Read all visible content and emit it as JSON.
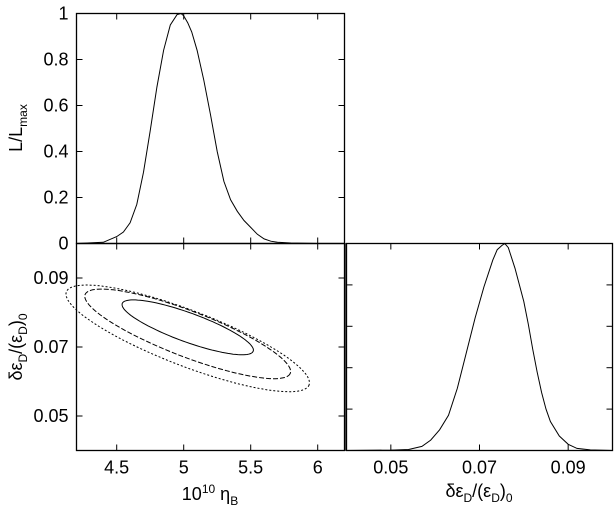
{
  "chart_data": [
    {
      "id": "eta_marginal",
      "type": "line",
      "ylabel": "L/L_max",
      "ylabel_parts": {
        "main": "L/L",
        "sub": "max"
      },
      "xlim": [
        4.2,
        6.2
      ],
      "ylim": [
        0,
        1
      ],
      "yticks": [
        0,
        0.2,
        0.4,
        0.6,
        0.8,
        1
      ],
      "ytick_labels": [
        "0",
        "0.2",
        "0.4",
        "0.6",
        "0.8",
        "1"
      ],
      "xticks": [
        4.5,
        5,
        5.5,
        6
      ],
      "series": [
        {
          "x": [
            4.2,
            4.4,
            4.5,
            4.55,
            4.6,
            4.65,
            4.7,
            4.75,
            4.8,
            4.85,
            4.9,
            4.95,
            4.98,
            5.0,
            5.03,
            5.06,
            5.1,
            5.15,
            5.2,
            5.25,
            5.3,
            5.35,
            5.4,
            5.45,
            5.5,
            5.55,
            5.6,
            5.65,
            5.7,
            5.8,
            6.0
          ],
          "y": [
            0,
            0.005,
            0.03,
            0.05,
            0.09,
            0.17,
            0.31,
            0.49,
            0.68,
            0.84,
            0.95,
            0.995,
            1.0,
            0.99,
            0.96,
            0.92,
            0.84,
            0.71,
            0.56,
            0.4,
            0.27,
            0.19,
            0.14,
            0.1,
            0.07,
            0.04,
            0.02,
            0.01,
            0.005,
            0.002,
            0
          ]
        }
      ]
    },
    {
      "id": "joint_contours",
      "type": "line",
      "xlabel": "10^10 η_B",
      "xlabel_parts": {
        "pre": "10",
        "sup": "10",
        "mid": " η",
        "sub": "B"
      },
      "ylabel": "δε_D/(ε_D)_0",
      "xlim": [
        4.2,
        6.2
      ],
      "ylim": [
        0.04,
        0.1
      ],
      "xticks": [
        4.5,
        5,
        5.5,
        6
      ],
      "xtick_labels": [
        "4.5",
        "5",
        "5.5",
        "6"
      ],
      "yticks": [
        0.05,
        0.07,
        0.09
      ],
      "ytick_labels": [
        "0.05",
        "0.07",
        "0.09"
      ],
      "contours": [
        {
          "level": "68%",
          "style": "solid",
          "center": [
            5.03,
            0.0757
          ],
          "radii": [
            0.52,
            0.01
          ],
          "angle_deg": 20
        },
        {
          "level": "95%",
          "style": "dashed",
          "center": [
            5.03,
            0.0738
          ],
          "radii": [
            0.82,
            0.0158
          ],
          "angle_deg": 21
        },
        {
          "level": "99%",
          "style": "dotted",
          "center": [
            5.03,
            0.0725
          ],
          "radii": [
            0.97,
            0.0192
          ],
          "angle_deg": 21
        }
      ]
    },
    {
      "id": "eps_marginal",
      "type": "line",
      "xlabel": "δε_D/(ε_D)_0",
      "xlim": [
        0.04,
        0.1
      ],
      "ylim": [
        0,
        1
      ],
      "xticks": [
        0.05,
        0.07,
        0.09
      ],
      "xtick_labels": [
        "0.05",
        "0.07",
        "0.09"
      ],
      "series": [
        {
          "x": [
            0.04,
            0.05,
            0.054,
            0.057,
            0.059,
            0.061,
            0.063,
            0.065,
            0.067,
            0.069,
            0.071,
            0.073,
            0.074,
            0.075,
            0.0757,
            0.0765,
            0.078,
            0.079,
            0.08,
            0.081,
            0.082,
            0.083,
            0.084,
            0.085,
            0.086,
            0.088,
            0.09,
            0.092,
            0.095,
            0.1
          ],
          "y": [
            0,
            0.002,
            0.005,
            0.02,
            0.05,
            0.1,
            0.17,
            0.3,
            0.47,
            0.64,
            0.79,
            0.92,
            0.97,
            0.99,
            1.0,
            0.98,
            0.88,
            0.8,
            0.72,
            0.61,
            0.49,
            0.38,
            0.28,
            0.2,
            0.14,
            0.07,
            0.03,
            0.01,
            0.003,
            0
          ]
        }
      ]
    }
  ]
}
